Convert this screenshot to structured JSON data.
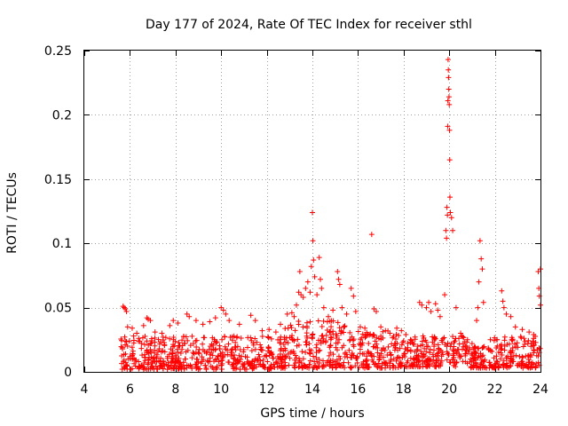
{
  "chart_data": {
    "type": "scatter",
    "title": "Day 177 of 2024, Rate Of TEC Index for receiver sthl",
    "xlabel": "GPS time / hours",
    "ylabel": "ROTI / TECUs",
    "xlim": [
      4,
      24
    ],
    "ylim": [
      0,
      0.25
    ],
    "x_ticks": [
      4,
      6,
      8,
      10,
      12,
      14,
      16,
      18,
      20,
      22,
      24
    ],
    "x_tick_labels": [
      "4",
      "6",
      "8",
      "10",
      "12",
      "14",
      "16",
      "18",
      "20",
      "22",
      "24"
    ],
    "y_ticks": [
      0,
      0.05,
      0.1,
      0.15,
      0.2,
      0.25
    ],
    "y_tick_labels": [
      "0",
      "0.05",
      "0.1",
      "0.15",
      "0.2",
      "0.25"
    ],
    "grid": true,
    "marker": "+",
    "color": "#ff0000",
    "series": [
      {
        "name": "ROTI",
        "points": [
          [
            5.7,
            0.051
          ],
          [
            5.75,
            0.05
          ],
          [
            5.8,
            0.049
          ],
          [
            5.85,
            0.047
          ],
          [
            5.9,
            0.035
          ],
          [
            6.1,
            0.034
          ],
          [
            6.3,
            0.03
          ],
          [
            6.6,
            0.036
          ],
          [
            6.75,
            0.042
          ],
          [
            6.8,
            0.041
          ],
          [
            6.9,
            0.04
          ],
          [
            7.1,
            0.031
          ],
          [
            7.4,
            0.03
          ],
          [
            7.75,
            0.036
          ],
          [
            7.9,
            0.04
          ],
          [
            8.1,
            0.038
          ],
          [
            8.5,
            0.045
          ],
          [
            8.6,
            0.043
          ],
          [
            8.9,
            0.04
          ],
          [
            9.2,
            0.037
          ],
          [
            9.5,
            0.039
          ],
          [
            9.75,
            0.042
          ],
          [
            10.0,
            0.05
          ],
          [
            10.1,
            0.048
          ],
          [
            10.2,
            0.045
          ],
          [
            10.35,
            0.04
          ],
          [
            10.8,
            0.037
          ],
          [
            11.3,
            0.044
          ],
          [
            11.5,
            0.04
          ],
          [
            11.8,
            0.032
          ],
          [
            12.1,
            0.033
          ],
          [
            12.4,
            0.031
          ],
          [
            12.6,
            0.037
          ],
          [
            12.9,
            0.045
          ],
          [
            13.1,
            0.046
          ],
          [
            13.2,
            0.043
          ],
          [
            13.3,
            0.052
          ],
          [
            13.4,
            0.062
          ],
          [
            13.45,
            0.078
          ],
          [
            13.5,
            0.06
          ],
          [
            13.6,
            0.058
          ],
          [
            13.7,
            0.065
          ],
          [
            13.8,
            0.07
          ],
          [
            13.9,
            0.062
          ],
          [
            13.95,
            0.082
          ],
          [
            14.0,
            0.124
          ],
          [
            14.02,
            0.102
          ],
          [
            14.05,
            0.087
          ],
          [
            14.1,
            0.074
          ],
          [
            14.2,
            0.06
          ],
          [
            14.3,
            0.089
          ],
          [
            14.35,
            0.072
          ],
          [
            14.4,
            0.065
          ],
          [
            14.5,
            0.05
          ],
          [
            14.7,
            0.043
          ],
          [
            14.9,
            0.048
          ],
          [
            15.1,
            0.078
          ],
          [
            15.15,
            0.072
          ],
          [
            15.2,
            0.068
          ],
          [
            15.3,
            0.05
          ],
          [
            15.5,
            0.045
          ],
          [
            15.7,
            0.065
          ],
          [
            15.8,
            0.059
          ],
          [
            15.9,
            0.047
          ],
          [
            16.1,
            0.035
          ],
          [
            16.3,
            0.034
          ],
          [
            16.6,
            0.107
          ],
          [
            16.7,
            0.049
          ],
          [
            16.8,
            0.047
          ],
          [
            17.0,
            0.035
          ],
          [
            17.2,
            0.032
          ],
          [
            17.4,
            0.03
          ],
          [
            17.7,
            0.034
          ],
          [
            17.9,
            0.032
          ],
          [
            18.1,
            0.029
          ],
          [
            18.3,
            0.025
          ],
          [
            18.7,
            0.054
          ],
          [
            18.8,
            0.052
          ],
          [
            19.0,
            0.05
          ],
          [
            19.1,
            0.054
          ],
          [
            19.2,
            0.047
          ],
          [
            19.4,
            0.053
          ],
          [
            19.5,
            0.048
          ],
          [
            19.6,
            0.043
          ],
          [
            19.8,
            0.06
          ],
          [
            19.85,
            0.11
          ],
          [
            19.88,
            0.104
          ],
          [
            19.9,
            0.128
          ],
          [
            19.92,
            0.122
          ],
          [
            19.93,
            0.191
          ],
          [
            19.94,
            0.211
          ],
          [
            19.95,
            0.243
          ],
          [
            19.96,
            0.235
          ],
          [
            19.97,
            0.229
          ],
          [
            19.98,
            0.22
          ],
          [
            19.99,
            0.214
          ],
          [
            20.0,
            0.208
          ],
          [
            20.01,
            0.188
          ],
          [
            20.02,
            0.165
          ],
          [
            20.03,
            0.136
          ],
          [
            20.05,
            0.124
          ],
          [
            20.1,
            0.12
          ],
          [
            20.15,
            0.11
          ],
          [
            20.3,
            0.05
          ],
          [
            20.5,
            0.03
          ],
          [
            20.8,
            0.025
          ],
          [
            21.0,
            0.022
          ],
          [
            21.2,
            0.04
          ],
          [
            21.25,
            0.05
          ],
          [
            21.3,
            0.07
          ],
          [
            21.35,
            0.102
          ],
          [
            21.4,
            0.088
          ],
          [
            21.45,
            0.08
          ],
          [
            21.5,
            0.054
          ],
          [
            21.8,
            0.025
          ],
          [
            22.1,
            0.025
          ],
          [
            22.3,
            0.063
          ],
          [
            22.35,
            0.055
          ],
          [
            22.4,
            0.05
          ],
          [
            22.5,
            0.045
          ],
          [
            22.7,
            0.043
          ],
          [
            22.9,
            0.035
          ],
          [
            23.2,
            0.033
          ],
          [
            23.5,
            0.031
          ],
          [
            23.7,
            0.029
          ],
          [
            23.9,
            0.078
          ],
          [
            23.93,
            0.065
          ],
          [
            23.95,
            0.059
          ],
          [
            24.0,
            0.08
          ],
          [
            24.0,
            0.052
          ]
        ]
      }
    ],
    "dense_band": {
      "segments": [
        {
          "x_start": 5.6,
          "x_end": 12.8,
          "y_min": 0.002,
          "y_max": 0.028
        },
        {
          "x_start": 12.8,
          "x_end": 15.6,
          "y_min": 0.003,
          "y_max": 0.04
        },
        {
          "x_start": 15.6,
          "x_end": 17.8,
          "y_min": 0.003,
          "y_max": 0.032
        },
        {
          "x_start": 17.8,
          "x_end": 18.5,
          "y_min": 0.004,
          "y_max": 0.025
        },
        {
          "x_start": 18.5,
          "x_end": 20.8,
          "y_min": 0.004,
          "y_max": 0.028
        },
        {
          "x_start": 20.8,
          "x_end": 21.9,
          "y_min": 0.003,
          "y_max": 0.02
        },
        {
          "x_start": 21.9,
          "x_end": 24.0,
          "y_min": 0.003,
          "y_max": 0.028
        }
      ],
      "points_per_hour": 70
    }
  }
}
